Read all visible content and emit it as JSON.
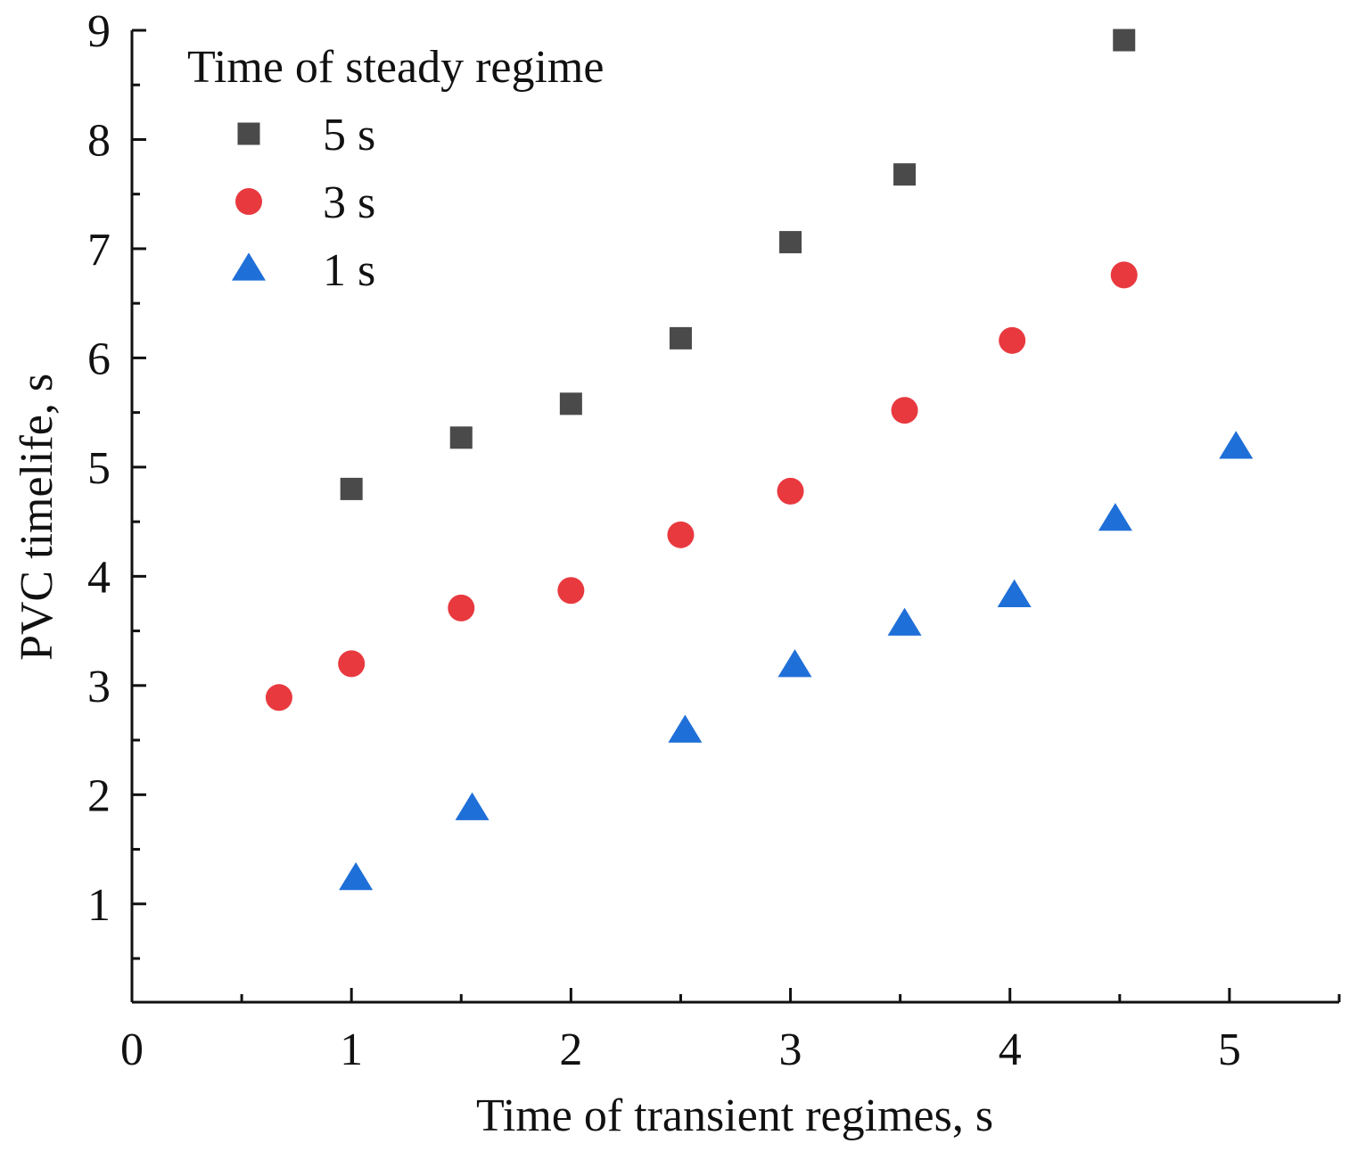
{
  "chart_data": {
    "type": "scatter",
    "title": "",
    "xlabel": "Time of transient regimes, s",
    "ylabel": "PVC timelife, s",
    "xlim": [
      0,
      5.5
    ],
    "ylim": [
      0.1,
      9
    ],
    "x_ticks": [
      {
        "value": 0,
        "label": "0"
      },
      {
        "value": 1,
        "label": "1"
      },
      {
        "value": 2,
        "label": "2"
      },
      {
        "value": 3,
        "label": "3"
      },
      {
        "value": 4,
        "label": "4"
      },
      {
        "value": 5,
        "label": "5"
      }
    ],
    "x_minor_ticks": [
      0.5,
      1.5,
      2.5,
      3.5,
      4.5,
      5.5
    ],
    "y_ticks": [
      {
        "value": 1,
        "label": "1"
      },
      {
        "value": 2,
        "label": "2"
      },
      {
        "value": 3,
        "label": "3"
      },
      {
        "value": 4,
        "label": "4"
      },
      {
        "value": 5,
        "label": "5"
      },
      {
        "value": 6,
        "label": "6"
      },
      {
        "value": 7,
        "label": "7"
      },
      {
        "value": 8,
        "label": "8"
      },
      {
        "value": 9,
        "label": "9"
      }
    ],
    "y_minor_ticks": [
      0.5,
      1.5,
      2.5,
      3.5,
      4.5,
      5.5,
      6.5,
      7.5,
      8.5
    ],
    "grid": false,
    "legend": {
      "title": "Time of steady regime",
      "position": "top-left"
    },
    "series": [
      {
        "name": "5 s",
        "marker": "square",
        "color": "#4a4a4a",
        "points": [
          {
            "x": 1.0,
            "y": 4.8
          },
          {
            "x": 1.5,
            "y": 5.27
          },
          {
            "x": 2.0,
            "y": 5.58
          },
          {
            "x": 2.5,
            "y": 6.18
          },
          {
            "x": 3.0,
            "y": 7.06
          },
          {
            "x": 3.52,
            "y": 7.68
          },
          {
            "x": 4.52,
            "y": 8.91
          }
        ]
      },
      {
        "name": "3 s",
        "marker": "circle",
        "color": "#e8393f",
        "points": [
          {
            "x": 0.67,
            "y": 2.89
          },
          {
            "x": 1.0,
            "y": 3.2
          },
          {
            "x": 1.5,
            "y": 3.71
          },
          {
            "x": 2.0,
            "y": 3.87
          },
          {
            "x": 2.5,
            "y": 4.38
          },
          {
            "x": 3.0,
            "y": 4.78
          },
          {
            "x": 3.52,
            "y": 5.52
          },
          {
            "x": 4.01,
            "y": 6.16
          },
          {
            "x": 4.52,
            "y": 6.76
          }
        ]
      },
      {
        "name": "1 s",
        "marker": "triangle",
        "color": "#1f6fd8",
        "points": [
          {
            "x": 1.02,
            "y": 1.23
          },
          {
            "x": 1.55,
            "y": 1.87
          },
          {
            "x": 2.52,
            "y": 2.58
          },
          {
            "x": 3.02,
            "y": 3.18
          },
          {
            "x": 3.52,
            "y": 3.56
          },
          {
            "x": 4.02,
            "y": 3.82
          },
          {
            "x": 4.48,
            "y": 4.52
          },
          {
            "x": 5.03,
            "y": 5.18
          }
        ]
      }
    ]
  }
}
